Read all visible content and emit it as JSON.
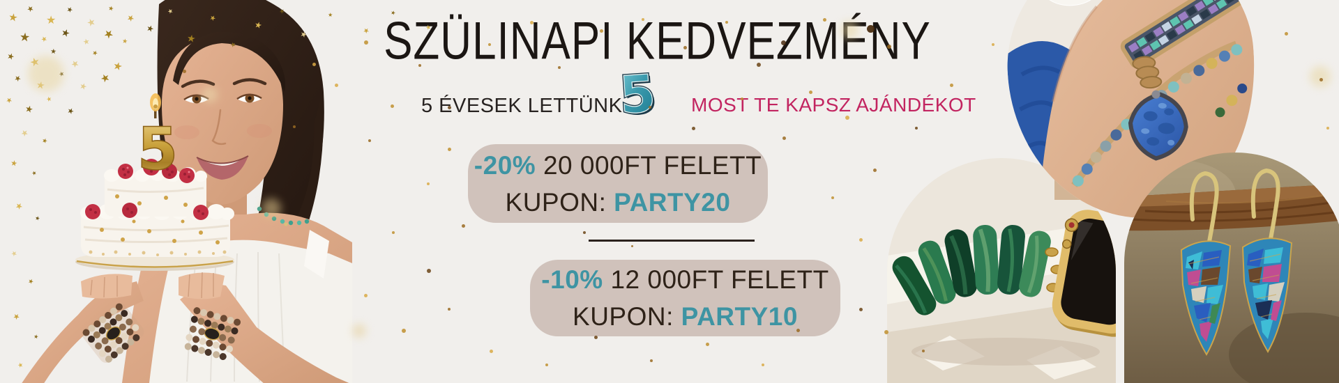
{
  "banner": {
    "background": "#f1efec",
    "title": "SZÜLINAPI KEDVEZMÉNY",
    "subtitle_left": "5 ÉVESEK LETTÜNK",
    "badge_number": "5",
    "subtitle_right": "MOST TE KAPSZ AJÁNDÉKOT"
  },
  "coupons": [
    {
      "discount": "-20%",
      "condition": "20 000FT FELETT",
      "kupon_label": "KUPON:",
      "code": "PARTY20"
    },
    {
      "discount": "-10%",
      "condition": "12 000FT FELETT",
      "kupon_label": "KUPON:",
      "code": "PARTY10"
    }
  ],
  "photos": {
    "cake_candle_number": "5",
    "model_photo": "woman-holding-birthday-cake",
    "product_photos": [
      "blue-gemstone-wrap-bracelet-on-wrist",
      "green-agate-watch-band",
      "colorful-gemstone-drop-earrings-on-branch"
    ]
  },
  "colors": {
    "teal": "#3e94a3",
    "pink": "#c22460",
    "coupon_box": "#d0c2bb",
    "text_dark": "#2a211c",
    "gold": "#c9982f",
    "background": "#f1efec"
  }
}
